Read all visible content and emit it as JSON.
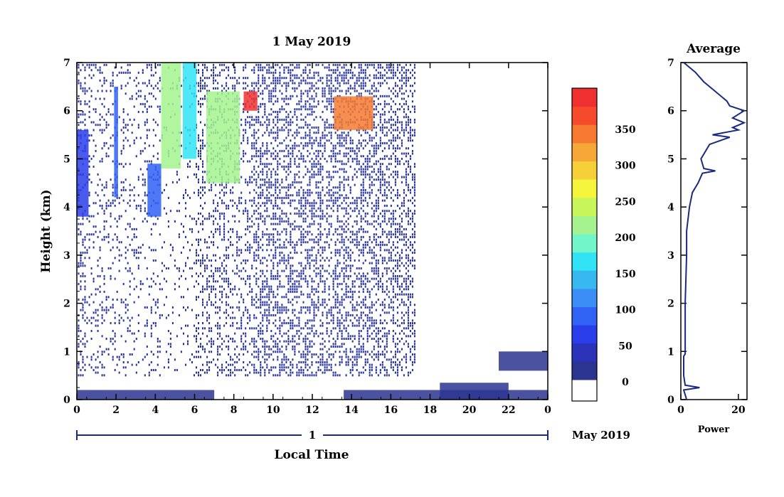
{
  "main_plot": {
    "title": "1 May 2019",
    "xlabel": "Local Time",
    "ylabel": "Height (km)",
    "x_ticks": [
      "0",
      "2",
      "4",
      "6",
      "8",
      "10",
      "12",
      "14",
      "16",
      "18",
      "20",
      "22",
      "0"
    ],
    "y_ticks": [
      "0",
      "1",
      "2",
      "3",
      "4",
      "5",
      "6",
      "7"
    ],
    "date_bar_label": "1",
    "date_bar_right": "May 2019"
  },
  "colorbar": {
    "ticks": [
      "0",
      "50",
      "100",
      "150",
      "200",
      "250",
      "300",
      "350"
    ],
    "colors": [
      "#2b3590",
      "#2b33b8",
      "#2a3dea",
      "#2f62f5",
      "#3a8ef5",
      "#38b8f0",
      "#30e4f5",
      "#72f5c8",
      "#a4f38e",
      "#c8f55a",
      "#f5f53c",
      "#f5d038",
      "#f5a838",
      "#f57a30",
      "#f54a2c",
      "#f03030"
    ]
  },
  "avg_plot": {
    "title": "Average",
    "xlabel": "Power",
    "x_ticks": [
      "0",
      "20"
    ],
    "y_ticks": [
      "0",
      "1",
      "2",
      "3",
      "4",
      "5",
      "6",
      "7"
    ]
  },
  "chart_data": [
    {
      "type": "heatmap",
      "title": "1 May 2019",
      "xlabel": "Local Time",
      "ylabel": "Height (km)",
      "xlim": [
        0,
        24
      ],
      "ylim": [
        0,
        7
      ],
      "colorbar_range": [
        0,
        380
      ],
      "features": [
        {
          "t_start": 0.0,
          "t_end": 7.0,
          "h_start": 0.0,
          "h_end": 0.2,
          "value": 20
        },
        {
          "t_start": 0.0,
          "t_end": 0.6,
          "h_start": 3.8,
          "h_end": 5.6,
          "value": 60
        },
        {
          "t_start": 1.9,
          "t_end": 2.1,
          "h_start": 4.2,
          "h_end": 6.5,
          "value": 80
        },
        {
          "t_start": 3.6,
          "t_end": 4.3,
          "h_start": 3.8,
          "h_end": 4.9,
          "value": 90
        },
        {
          "t_start": 4.3,
          "t_end": 5.3,
          "h_start": 4.8,
          "h_end": 7.0,
          "value": 200
        },
        {
          "t_start": 5.4,
          "t_end": 6.1,
          "h_start": 5.0,
          "h_end": 7.0,
          "value": 150
        },
        {
          "t_start": 6.6,
          "t_end": 8.3,
          "h_start": 4.5,
          "h_end": 6.4,
          "value": 200
        },
        {
          "t_start": 8.5,
          "t_end": 9.2,
          "h_start": 6.0,
          "h_end": 6.4,
          "value": 360
        },
        {
          "t_start": 13.1,
          "t_end": 15.1,
          "h_start": 5.6,
          "h_end": 6.3,
          "value": 320
        },
        {
          "t_start": 13.6,
          "t_end": 24.0,
          "h_start": 0.0,
          "h_end": 0.2,
          "value": 20
        },
        {
          "t_start": 18.5,
          "t_end": 22.0,
          "h_start": 0.0,
          "h_end": 0.35,
          "value": 20
        },
        {
          "t_start": 21.5,
          "t_end": 24.0,
          "h_start": 0.6,
          "h_end": 1.0,
          "value": 20
        }
      ]
    },
    {
      "type": "line",
      "title": "Average",
      "xlabel": "Power",
      "xlim": [
        0,
        23
      ],
      "ylim": [
        0,
        7
      ],
      "x": [
        2,
        1.5,
        1,
        6.5,
        1.5,
        1,
        1,
        1.5,
        1.5,
        1.5,
        2,
        2,
        3,
        4,
        6,
        7.5,
        12,
        8,
        7,
        10,
        17,
        11,
        20,
        18,
        22,
        18,
        22,
        17,
        16,
        12,
        8,
        5,
        2,
        1
      ],
      "y": [
        0,
        0.1,
        0.2,
        0.25,
        0.3,
        0.5,
        0.9,
        0.95,
        1.0,
        2.0,
        3.0,
        3.5,
        4.0,
        4.3,
        4.5,
        4.7,
        4.75,
        4.8,
        5.0,
        5.3,
        5.45,
        5.5,
        5.6,
        5.65,
        5.75,
        5.85,
        6.0,
        6.1,
        6.2,
        6.4,
        6.6,
        6.8,
        6.95,
        7.0
      ]
    }
  ]
}
